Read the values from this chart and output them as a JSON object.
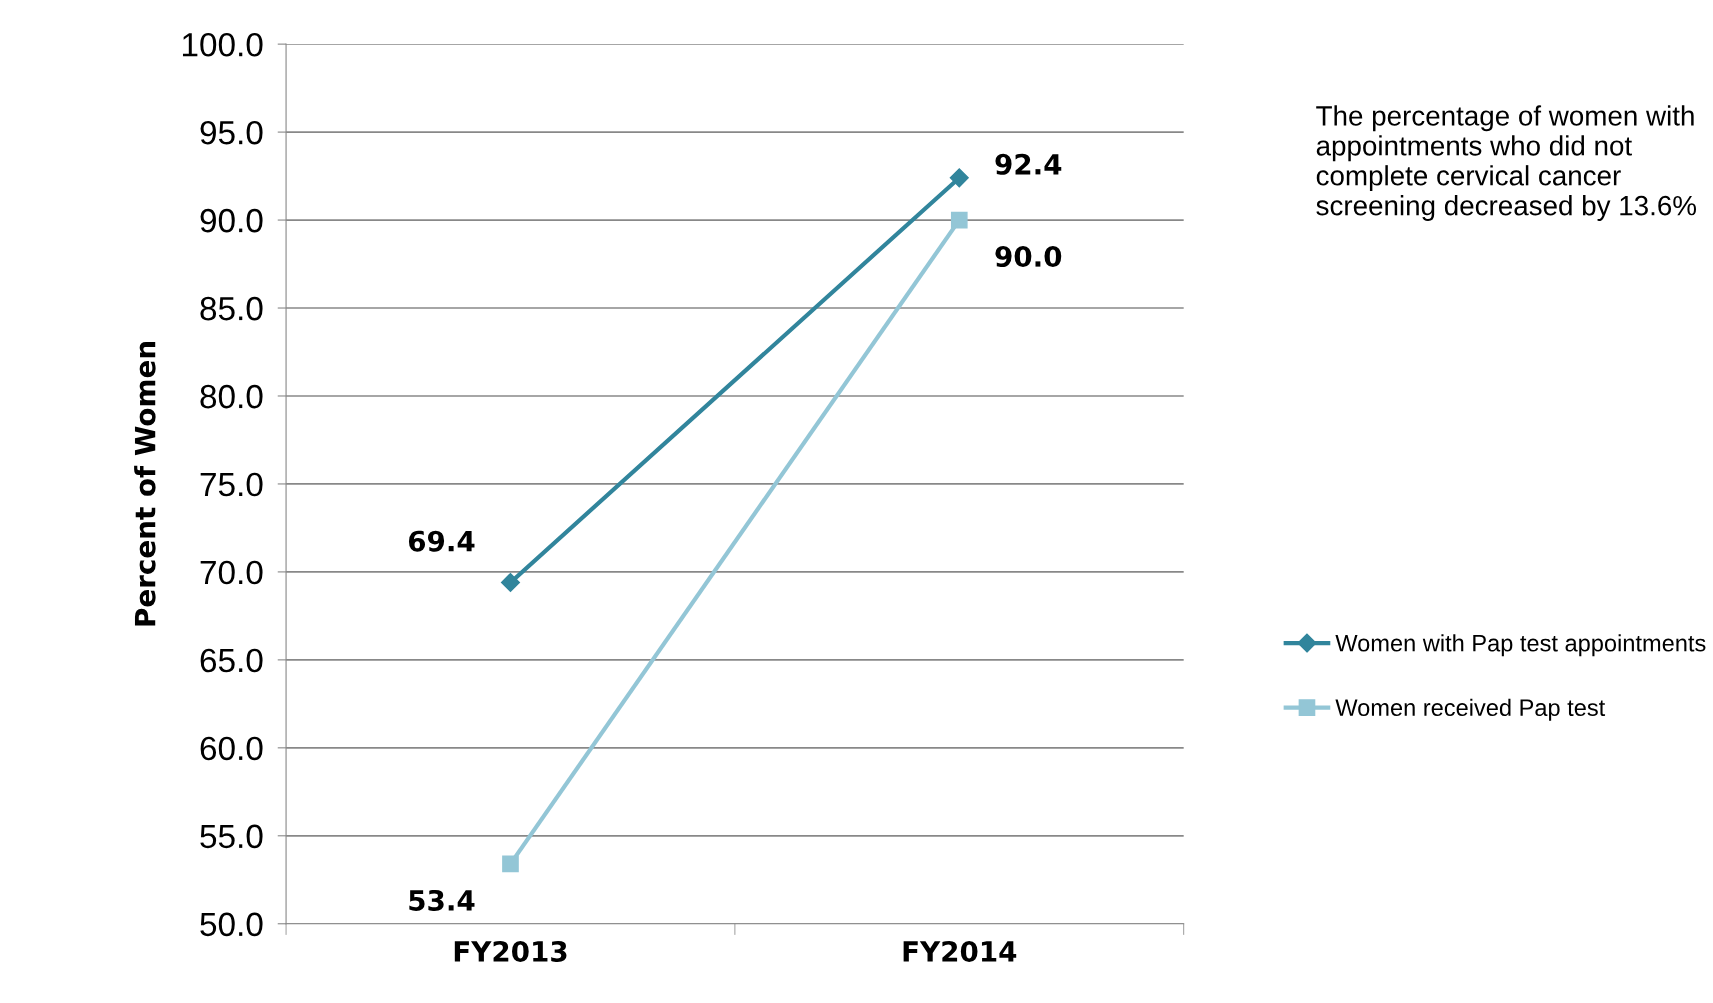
{
  "chart_data": {
    "type": "line",
    "ylabel": "Percent of Women",
    "categories": [
      "FY2013",
      "FY2014"
    ],
    "series": [
      {
        "name": "Women with Pap test appointments",
        "color": "#31859c",
        "marker": "diamond",
        "values": [
          69.4,
          92.4
        ],
        "value_labels": [
          "69.4",
          "92.4"
        ]
      },
      {
        "name": "Women received Pap test",
        "color": "#93c6d6",
        "marker": "square",
        "values": [
          53.4,
          90.0
        ],
        "value_labels": [
          "53.4",
          "90.0"
        ]
      }
    ],
    "ylim": [
      50,
      100
    ],
    "yticks": [
      {
        "value": 50,
        "label": "50.0"
      },
      {
        "value": 55,
        "label": "55.0"
      },
      {
        "value": 60,
        "label": "60.0"
      },
      {
        "value": 65,
        "label": "65.0"
      },
      {
        "value": 70,
        "label": "70.0"
      },
      {
        "value": 75,
        "label": "75.0"
      },
      {
        "value": 80,
        "label": "80.0"
      },
      {
        "value": 85,
        "label": "85.0"
      },
      {
        "value": 90,
        "label": "90.0"
      },
      {
        "value": 95,
        "label": "95.0"
      },
      {
        "value": 100,
        "label": "100.0"
      }
    ],
    "grid": "y",
    "legend": "right",
    "line_style": "solid",
    "annotations": [
      "The percentage of women with appointments who did not complete cervical cancer screening decreased by 13.6%"
    ]
  }
}
